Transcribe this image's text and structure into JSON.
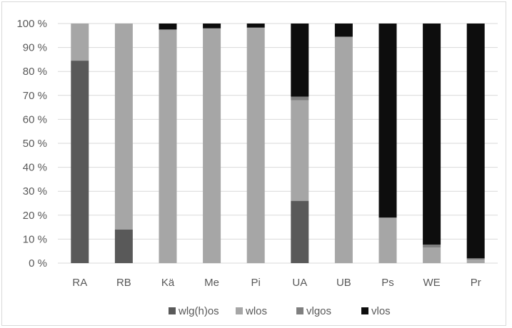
{
  "chart_data": {
    "type": "bar",
    "stacked": true,
    "normalized": true,
    "categories": [
      "RA",
      "RB",
      "Kä",
      "Me",
      "Pi",
      "UA",
      "UB",
      "Ps",
      "WE",
      "Pr"
    ],
    "ylim": [
      0,
      100
    ],
    "yticks": [
      "0 %",
      "10 %",
      "20 %",
      "30 %",
      "40 %",
      "50 %",
      "60 %",
      "70 %",
      "80 %",
      "90 %",
      "100 %"
    ],
    "grid": true,
    "legend_position": "bottom",
    "series": [
      {
        "name": "wlg(h)os",
        "color": "#595959",
        "values": [
          84.5,
          14,
          0,
          0,
          0,
          26,
          0,
          0,
          0,
          0
        ]
      },
      {
        "name": "wlos",
        "color": "#a6a6a6",
        "values": [
          15.5,
          86,
          97.5,
          98,
          98.3,
          42,
          94.5,
          19,
          6.5,
          1.5
        ]
      },
      {
        "name": "vlgos",
        "color": "#7f7f7f",
        "values": [
          0,
          0,
          0,
          0,
          0,
          1.5,
          0,
          0,
          1.2,
          0.5
        ]
      },
      {
        "name": "vlos",
        "color": "#0d0d0d",
        "values": [
          0,
          0,
          2.5,
          2,
          1.7,
          30.5,
          5.5,
          81,
          92.3,
          98
        ]
      }
    ]
  }
}
